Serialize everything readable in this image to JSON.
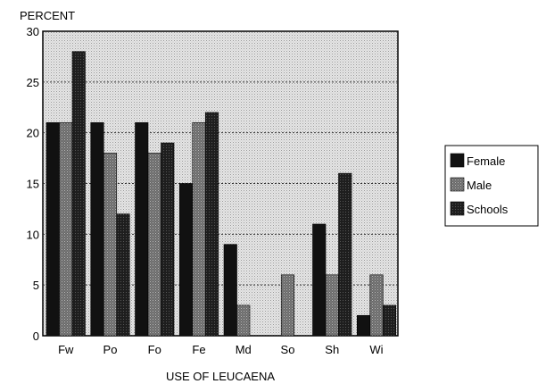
{
  "chart_data": {
    "type": "bar",
    "title": "",
    "ylabel": "PERCENT",
    "xlabel": "USE OF LEUCAENA",
    "categories": [
      "Fw",
      "Po",
      "Fo",
      "Fe",
      "Md",
      "So",
      "Sh",
      "Wi"
    ],
    "series": [
      {
        "name": "Female",
        "values": [
          21,
          21,
          21,
          15,
          9,
          0,
          11,
          2
        ],
        "color": "#111111"
      },
      {
        "name": "Male",
        "values": [
          21,
          18,
          18,
          21,
          3,
          6,
          6,
          6
        ],
        "color": "#7a7a7a"
      },
      {
        "name": "Schools",
        "values": [
          28,
          12,
          19,
          22,
          0,
          0,
          16,
          3
        ],
        "color": "#2e2e2e"
      }
    ],
    "ylim": [
      0,
      30
    ],
    "yticks": [
      0,
      5,
      10,
      15,
      20,
      25,
      30
    ],
    "grid": true,
    "legend": "right",
    "background": "#d6d6d6"
  }
}
